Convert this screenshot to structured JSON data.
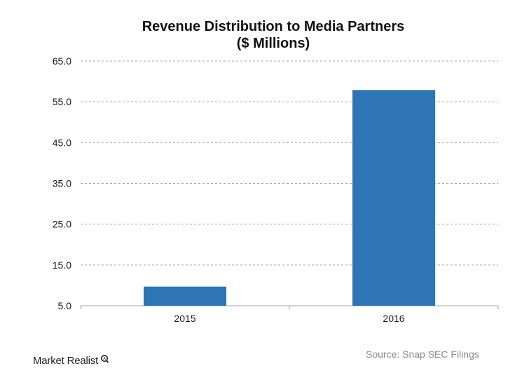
{
  "title": "Revenue Distribution to Media Partners",
  "subtitle": "($ Millions)",
  "source": "Source: Snap SEC Filings",
  "brand": "Market Realist",
  "colors": {
    "bar": "#2E75B6",
    "grid": "#A6A6A6",
    "axis": "#A6A6A6",
    "text": "#1A1A1A"
  },
  "chart_data": {
    "type": "bar",
    "categories": [
      "2015",
      "2016"
    ],
    "values": [
      9.7,
      57.9
    ],
    "title": "Revenue Distribution to Media Partners",
    "subtitle": "($ Millions)",
    "xlabel": "",
    "ylabel": "",
    "ylim": [
      5.0,
      65.0
    ],
    "yticks": [
      "65.0",
      "55.0",
      "45.0",
      "35.0",
      "25.0",
      "15.0",
      "5.0"
    ],
    "grid": true,
    "legend": "none"
  }
}
